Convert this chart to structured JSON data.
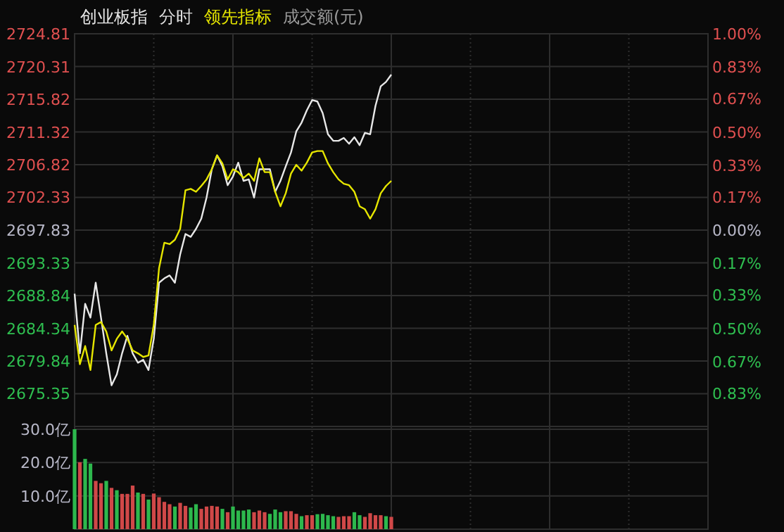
{
  "chart_data": [
    {
      "type": "line",
      "title": "分时",
      "categories": [
        null,
        null,
        null,
        null,
        null,
        null,
        null,
        null,
        null,
        null,
        null,
        null,
        null,
        null,
        null,
        null,
        null,
        null,
        null,
        null,
        null,
        null,
        null,
        null,
        null,
        null,
        null,
        null,
        null,
        null,
        null,
        null,
        null,
        null,
        null,
        null,
        null,
        null,
        null,
        null,
        null,
        null,
        null,
        null,
        null,
        null,
        null,
        null,
        null,
        null,
        null,
        null,
        null,
        null,
        null,
        null,
        null,
        null,
        null,
        null,
        null,
        null,
        null,
        null,
        null,
        null,
        null,
        null,
        null,
        null,
        null,
        null,
        null,
        null,
        null,
        null,
        null,
        null,
        null,
        null,
        null,
        null,
        null,
        null,
        null,
        null,
        null,
        null,
        null,
        null,
        null,
        null,
        null,
        null,
        null,
        null,
        null,
        null,
        null,
        null,
        null,
        null,
        null,
        null,
        null,
        null,
        null,
        null,
        null,
        null,
        null,
        null,
        null,
        null,
        null,
        null,
        null,
        null,
        null,
        null,
        null
      ],
      "series": [
        {
          "name": "创业板指",
          "color": "#e8e8e8",
          "values": [
            2689.1,
            2680.9,
            2687.7,
            2685.8,
            2690.6,
            2685.8,
            2680.9,
            2676.5,
            2678.0,
            2680.9,
            2683.3,
            2680.9,
            2679.6,
            2680.0,
            2678.6,
            2682.9,
            2690.6,
            2691.2,
            2691.6,
            2690.6,
            2694.5,
            2697.3,
            2696.9,
            2698.0,
            2699.4,
            2702.3,
            2706.2,
            2708.1,
            2706.6,
            2704.0,
            2705.2,
            2707.1,
            2704.6,
            2704.8,
            2702.3,
            2706.2,
            2706.2,
            2706.2,
            2703.1,
            2704.6,
            2706.6,
            2708.5,
            2711.4,
            2712.6,
            2714.3,
            2715.7,
            2715.5,
            2713.9,
            2711.0,
            2710.1,
            2710.1,
            2710.5,
            2709.7,
            2710.6,
            2709.5,
            2711.2,
            2711.0,
            2714.9,
            2717.6,
            2718.2,
            2719.2,
            null,
            null,
            null,
            null,
            null,
            null,
            null,
            null,
            null,
            null,
            null,
            null,
            null,
            null,
            null,
            null,
            null,
            null,
            null,
            null,
            null,
            null,
            null,
            null,
            null,
            null,
            null,
            null,
            null,
            null,
            null,
            null,
            null,
            null,
            null,
            null,
            null,
            null,
            null,
            null,
            null,
            null,
            null,
            null,
            null,
            null,
            null,
            null,
            null,
            null,
            null,
            null,
            null,
            null,
            null,
            null,
            null,
            null,
            null,
            null
          ]
        },
        {
          "name": "领先指标",
          "color": "#e6e600",
          "values": [
            2684.8,
            2679.4,
            2681.9,
            2678.6,
            2684.8,
            2685.2,
            2683.9,
            2681.3,
            2682.9,
            2683.9,
            2682.9,
            2681.3,
            2680.9,
            2680.4,
            2680.6,
            2684.8,
            2692.6,
            2696.1,
            2695.9,
            2696.5,
            2698.0,
            2703.3,
            2703.5,
            2703.1,
            2703.9,
            2704.8,
            2706.2,
            2708.1,
            2707.0,
            2704.8,
            2706.2,
            2705.8,
            2705.0,
            2705.6,
            2704.6,
            2707.7,
            2705.8,
            2705.8,
            2703.1,
            2701.1,
            2702.9,
            2705.6,
            2706.8,
            2706.0,
            2707.1,
            2708.5,
            2708.7,
            2708.7,
            2707.0,
            2705.8,
            2704.8,
            2704.2,
            2704.0,
            2703.1,
            2701.1,
            2700.7,
            2699.4,
            2700.7,
            2702.9,
            2703.9,
            2704.6,
            null,
            null,
            null,
            null,
            null,
            null,
            null,
            null,
            null,
            null,
            null,
            null,
            null,
            null,
            null,
            null,
            null,
            null,
            null,
            null,
            null,
            null,
            null,
            null,
            null,
            null,
            null,
            null,
            null,
            null,
            null,
            null,
            null,
            null,
            null,
            null,
            null,
            null,
            null,
            null,
            null,
            null,
            null,
            null,
            null,
            null,
            null,
            null,
            null,
            null,
            null,
            null,
            null,
            null,
            null,
            null,
            null,
            null,
            null,
            null
          ]
        }
      ],
      "ylim": [
        2670.85,
        2724.81
      ],
      "yticks": [
        2724.81,
        2720.31,
        2715.82,
        2711.32,
        2706.82,
        2702.33,
        2697.83,
        2693.33,
        2688.84,
        2684.34,
        2679.84,
        2675.35
      ],
      "y2lim": [
        -1,
        1
      ],
      "y2ticks": [
        {
          "value": 1,
          "label": "1.00%"
        },
        {
          "value": 0.83,
          "label": "0.83%"
        },
        {
          "value": 0.67,
          "label": "0.67%"
        },
        {
          "value": 0.5,
          "label": "0.50%"
        },
        {
          "value": 0.33,
          "label": "0.33%"
        },
        {
          "value": 0.17,
          "label": "0.17%"
        },
        {
          "value": 0,
          "label": "0.00%"
        },
        {
          "value": -0.17,
          "label": "0.17%"
        },
        {
          "value": -0.33,
          "label": "0.33%"
        },
        {
          "value": -0.5,
          "label": "0.50%"
        },
        {
          "value": -0.67,
          "label": "0.67%"
        },
        {
          "value": -0.83,
          "label": "0.83%"
        }
      ],
      "annotations": [
        "成交额(元)"
      ],
      "grid": true,
      "legend": "top left",
      "tick_labels": "y",
      "line_style": "solid"
    },
    {
      "type": "bar",
      "categories": [
        null,
        null,
        null,
        null,
        null,
        null,
        null,
        null,
        null,
        null,
        null,
        null,
        null,
        null,
        null,
        null,
        null,
        null,
        null,
        null,
        null,
        null,
        null,
        null,
        null,
        null,
        null,
        null,
        null,
        null,
        null,
        null,
        null,
        null,
        null,
        null,
        null,
        null,
        null,
        null,
        null,
        null,
        null,
        null,
        null,
        null,
        null,
        null,
        null,
        null,
        null,
        null,
        null,
        null,
        null,
        null,
        null,
        null,
        null,
        null,
        null,
        null,
        null,
        null,
        null,
        null,
        null,
        null,
        null,
        null,
        null,
        null,
        null,
        null,
        null,
        null,
        null,
        null,
        null,
        null,
        null,
        null,
        null,
        null,
        null,
        null,
        null,
        null,
        null,
        null,
        null,
        null,
        null,
        null,
        null,
        null,
        null,
        null,
        null,
        null,
        null,
        null,
        null,
        null,
        null,
        null,
        null,
        null,
        null,
        null,
        null,
        null,
        null,
        null,
        null,
        null,
        null,
        null,
        null,
        null,
        null
      ],
      "values": [
        30,
        20.1,
        21.1,
        19.7,
        14.5,
        13.8,
        14.5,
        12.4,
        11.7,
        10.6,
        10.6,
        13.1,
        11.0,
        10.6,
        8.9,
        10.7,
        9.6,
        8.2,
        7.5,
        6.8,
        7.9,
        7.0,
        6.5,
        7.5,
        6.1,
        6.8,
        7.0,
        6.8,
        6.1,
        5.1,
        6.8,
        5.6,
        5.6,
        5.9,
        5.1,
        5.6,
        5.1,
        4.6,
        5.9,
        5.1,
        5.4,
        5.4,
        4.6,
        3.9,
        4.2,
        4.2,
        4.5,
        4.6,
        4.2,
        3.9,
        3.7,
        3.9,
        3.9,
        5.1,
        4.2,
        3.7,
        4.8,
        4.2,
        4.2,
        3.9,
        3.7,
        null,
        null,
        null,
        null,
        null,
        null,
        null,
        null,
        null,
        null,
        null,
        null,
        null,
        null,
        null,
        null,
        null,
        null,
        null,
        null,
        null,
        null,
        null,
        null,
        null,
        null,
        null,
        null,
        null,
        null,
        null,
        null,
        null,
        null,
        null,
        null,
        null,
        null,
        null,
        null,
        null,
        null,
        null,
        null,
        null,
        null,
        null,
        null,
        null,
        null,
        null,
        null,
        null,
        null,
        null,
        null,
        null,
        null,
        null,
        null
      ],
      "colors": [
        "#2db84d",
        "#d04848",
        "#2db84d",
        "#2db84d",
        "#d04848",
        "#d04848",
        "#2db84d",
        "#d04848",
        "#2db84d",
        "#d04848",
        "#d04848",
        "#d04848",
        "#2db84d",
        "#d04848",
        "#2db84d",
        "#d04848",
        "#d04848",
        "#d04848",
        "#d04848",
        "#2db84d",
        "#d04848",
        "#d04848",
        "#2db84d",
        "#2db84d",
        "#d04848",
        "#d04848",
        "#d04848",
        "#d04848",
        "#2db84d",
        "#d04848",
        "#2db84d",
        "#2db84d",
        "#2db84d",
        "#2db84d",
        "#d04848",
        "#d04848",
        "#d04848",
        "#2db84d",
        "#2db84d",
        "#2db84d",
        "#d04848",
        "#d04848",
        "#d04848",
        "#2db84d",
        "#d04848",
        "#d04848",
        "#2db84d",
        "#2db84d",
        "#2db84d",
        "#2db84d",
        "#d04848",
        "#d04848",
        "#d04848",
        "#2db84d",
        "#2db84d",
        "#d04848",
        "#d04848",
        "#d04848",
        "#d04848",
        "#2db84d",
        "#d04848",
        null,
        null,
        null,
        null,
        null,
        null,
        null,
        null,
        null,
        null,
        null,
        null,
        null,
        null,
        null,
        null,
        null,
        null,
        null,
        null,
        null,
        null,
        null,
        null,
        null,
        null,
        null,
        null,
        null,
        null,
        null,
        null,
        null,
        null,
        null,
        null,
        null,
        null,
        null,
        null,
        null,
        null,
        null,
        null,
        null,
        null,
        null,
        null,
        null,
        null,
        null,
        null,
        null,
        null,
        null,
        null,
        null,
        null,
        null,
        null
      ],
      "ylim": [
        0,
        30
      ],
      "yticks": [
        {
          "value": 10,
          "label": "10.0亿"
        },
        {
          "value": 20,
          "label": "20.0亿"
        },
        {
          "value": 30,
          "label": "30.0亿"
        }
      ],
      "grid": true,
      "tick_labels": "y"
    }
  ]
}
